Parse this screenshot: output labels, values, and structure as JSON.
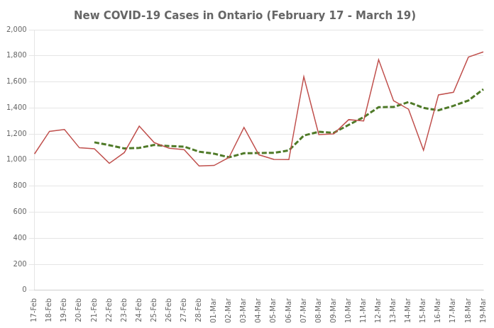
{
  "chart_data": {
    "type": "line",
    "title": "New COVID-19 Cases in Ontario (February 17 - March 19)",
    "categories": [
      "17-Feb",
      "18-Feb",
      "19-Feb",
      "20-Feb",
      "21-Feb",
      "22-Feb",
      "23-Feb",
      "24-Feb",
      "25-Feb",
      "26-Feb",
      "27-Feb",
      "28-Feb",
      "01-Mar",
      "02-Mar",
      "03-Mar",
      "04-Mar",
      "05-Mar",
      "06-Mar",
      "07-Mar",
      "08-Mar",
      "09-Mar",
      "10-Mar",
      "11-Mar",
      "12-Mar",
      "13-Mar",
      "14-Mar",
      "15-Mar",
      "16-Mar",
      "17-Mar",
      "18-Mar",
      "19-Mar"
    ],
    "series": [
      {
        "color": "#c0504d",
        "line_style": "solid",
        "values": [
          1047,
          1220,
          1234,
          1094,
          1087,
          975,
          1057,
          1260,
          1134,
          1090,
          1080,
          955,
          958,
          1020,
          1250,
          1040,
          1005,
          1003,
          1640,
          1195,
          1200,
          1310,
          1300,
          1770,
          1455,
          1390,
          1075,
          1500,
          1520,
          1790,
          1830
        ]
      },
      {
        "color": "#4f7a28",
        "line_style": "dashed",
        "values": [
          null,
          null,
          null,
          null,
          1136,
          1114,
          1089,
          1093,
          1116,
          1107,
          1103,
          1064,
          1049,
          1021,
          1052,
          1054,
          1055,
          1074,
          1188,
          1217,
          1209,
          1270,
          1329,
          1406,
          1407,
          1445,
          1400,
          1382,
          1416,
          1457,
          1543
        ]
      }
    ],
    "ylim": [
      0,
      2000
    ],
    "yticks": [
      0,
      200,
      400,
      600,
      800,
      {
        "value": 1000,
        "label": "1,000"
      },
      {
        "value": 1200,
        "label": "1,200"
      },
      {
        "value": 1400,
        "label": "1,400"
      },
      {
        "value": 1600,
        "label": "1,600"
      },
      {
        "value": 1800,
        "label": "1,800"
      },
      {
        "value": 2000,
        "label": "2,000"
      }
    ],
    "grid": "y"
  }
}
